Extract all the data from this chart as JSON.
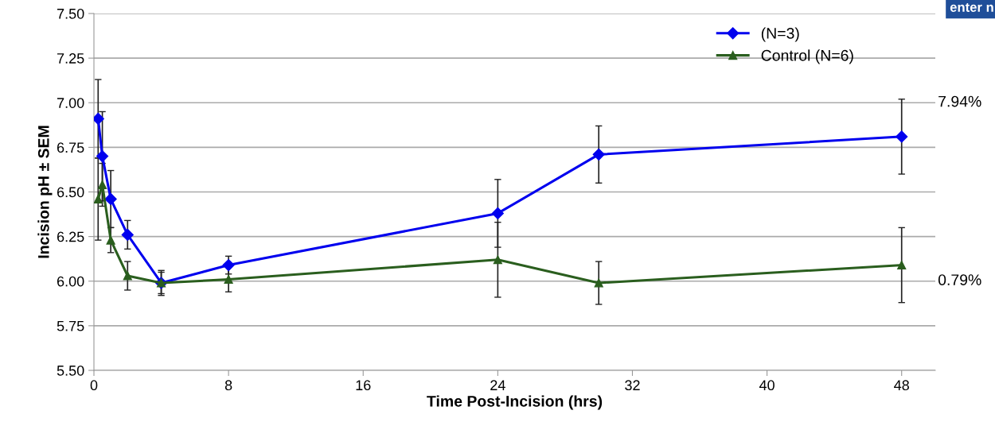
{
  "chart_data": {
    "type": "line",
    "xlabel": "Time Post-Incision (hrs)",
    "ylabel": "Incision pH ± SEM",
    "x": [
      0.25,
      0.5,
      1,
      2,
      4,
      8,
      24,
      30,
      48
    ],
    "series": [
      {
        "name": "(N=3)",
        "color": "#0000ee",
        "marker": "diamond",
        "values": [
          6.91,
          6.7,
          6.46,
          6.26,
          5.99,
          6.09,
          6.38,
          6.71,
          6.81
        ],
        "errors": [
          0.22,
          0.25,
          0.16,
          0.08,
          0.06,
          0.05,
          0.19,
          0.16,
          0.21
        ]
      },
      {
        "name": "Control (N=6)",
        "color": "#2a5e1e",
        "marker": "triangle",
        "values": [
          6.46,
          6.54,
          6.23,
          6.03,
          5.99,
          6.01,
          6.12,
          5.99,
          6.09
        ],
        "errors": [
          0.23,
          0.12,
          0.07,
          0.08,
          0.07,
          0.07,
          0.21,
          0.12,
          0.21
        ]
      }
    ],
    "xlim": [
      0,
      50
    ],
    "xticks": [
      0,
      8,
      16,
      24,
      32,
      40,
      48
    ],
    "ylim": [
      5.5,
      7.5
    ],
    "yticks": [
      {
        "value": 5.5,
        "label": "5.50"
      },
      {
        "value": 5.75,
        "label": "5.75"
      },
      {
        "value": 6.0,
        "label": "6.00"
      },
      {
        "value": 6.25,
        "label": "6.25"
      },
      {
        "value": 6.5,
        "label": "6.50"
      },
      {
        "value": 6.75,
        "label": "6.75"
      },
      {
        "value": 7.0,
        "label": "7.00"
      },
      {
        "value": 7.25,
        "label": "7.25"
      },
      {
        "value": 7.5,
        "label": "7.50"
      }
    ],
    "grid": "y",
    "legend": "top right",
    "line_style": "solid",
    "annotations": [
      "7.94%",
      "0.79%",
      "enter n"
    ]
  }
}
